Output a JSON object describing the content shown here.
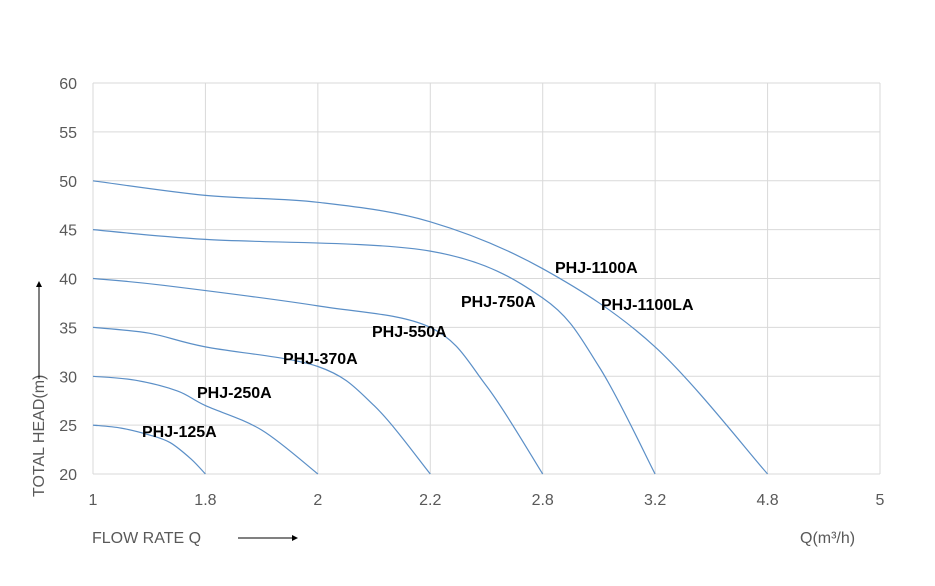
{
  "chart_data": {
    "type": "line",
    "title": "",
    "xlabel": "FLOW RATE Q",
    "xunit": "Q(m³/h)",
    "ylabel": "TOTAL HEAD(m)",
    "x_tick_labels": [
      "1",
      "1.8",
      "2",
      "2.2",
      "2.8",
      "3.2",
      "4.8",
      "5"
    ],
    "y_ticks": [
      20,
      25,
      30,
      35,
      40,
      45,
      50,
      55,
      60
    ],
    "ylim": [
      20,
      60
    ],
    "grid": true,
    "line_color": "#5b8fc7",
    "series": [
      {
        "name": "PHJ-125A",
        "x": [
          1,
          1.2,
          1.4,
          1.55,
          1.7,
          1.8
        ],
        "y": [
          25,
          24.7,
          24.0,
          23.2,
          21.5,
          20
        ]
      },
      {
        "name": "PHJ-250A",
        "x": [
          1,
          1.3,
          1.6,
          1.8,
          1.9,
          2
        ],
        "y": [
          30,
          29.6,
          28.5,
          27.0,
          24.5,
          20
        ]
      },
      {
        "name": "PHJ-370A",
        "x": [
          1,
          1.4,
          1.8,
          2,
          2.1,
          2.2
        ],
        "y": [
          35,
          34.4,
          33.0,
          31.0,
          27.0,
          20
        ]
      },
      {
        "name": "PHJ-550A",
        "x": [
          1,
          1.5,
          2,
          2.2,
          2.5,
          2.8
        ],
        "y": [
          40,
          39.3,
          37.2,
          35.0,
          29.0,
          20
        ]
      },
      {
        "name": "PHJ-750A",
        "x": [
          1,
          1.8,
          2.2,
          2.8,
          3.0,
          3.2
        ],
        "y": [
          45,
          44.0,
          42.8,
          38.0,
          31.0,
          20
        ]
      },
      {
        "name": "PHJ-1100A",
        "x": [
          1,
          1.8,
          2,
          2.2,
          2.8,
          3.2,
          4.8
        ],
        "y": [
          50,
          48.5,
          47.8,
          45.8,
          41.0,
          33.0,
          20
        ]
      }
    ],
    "annotations": [
      "PHJ-125A",
      "PHJ-250A",
      "PHJ-370A",
      "PHJ-550A",
      "PHJ-750A",
      "PHJ-1100A",
      "PHJ-1100LA"
    ]
  }
}
